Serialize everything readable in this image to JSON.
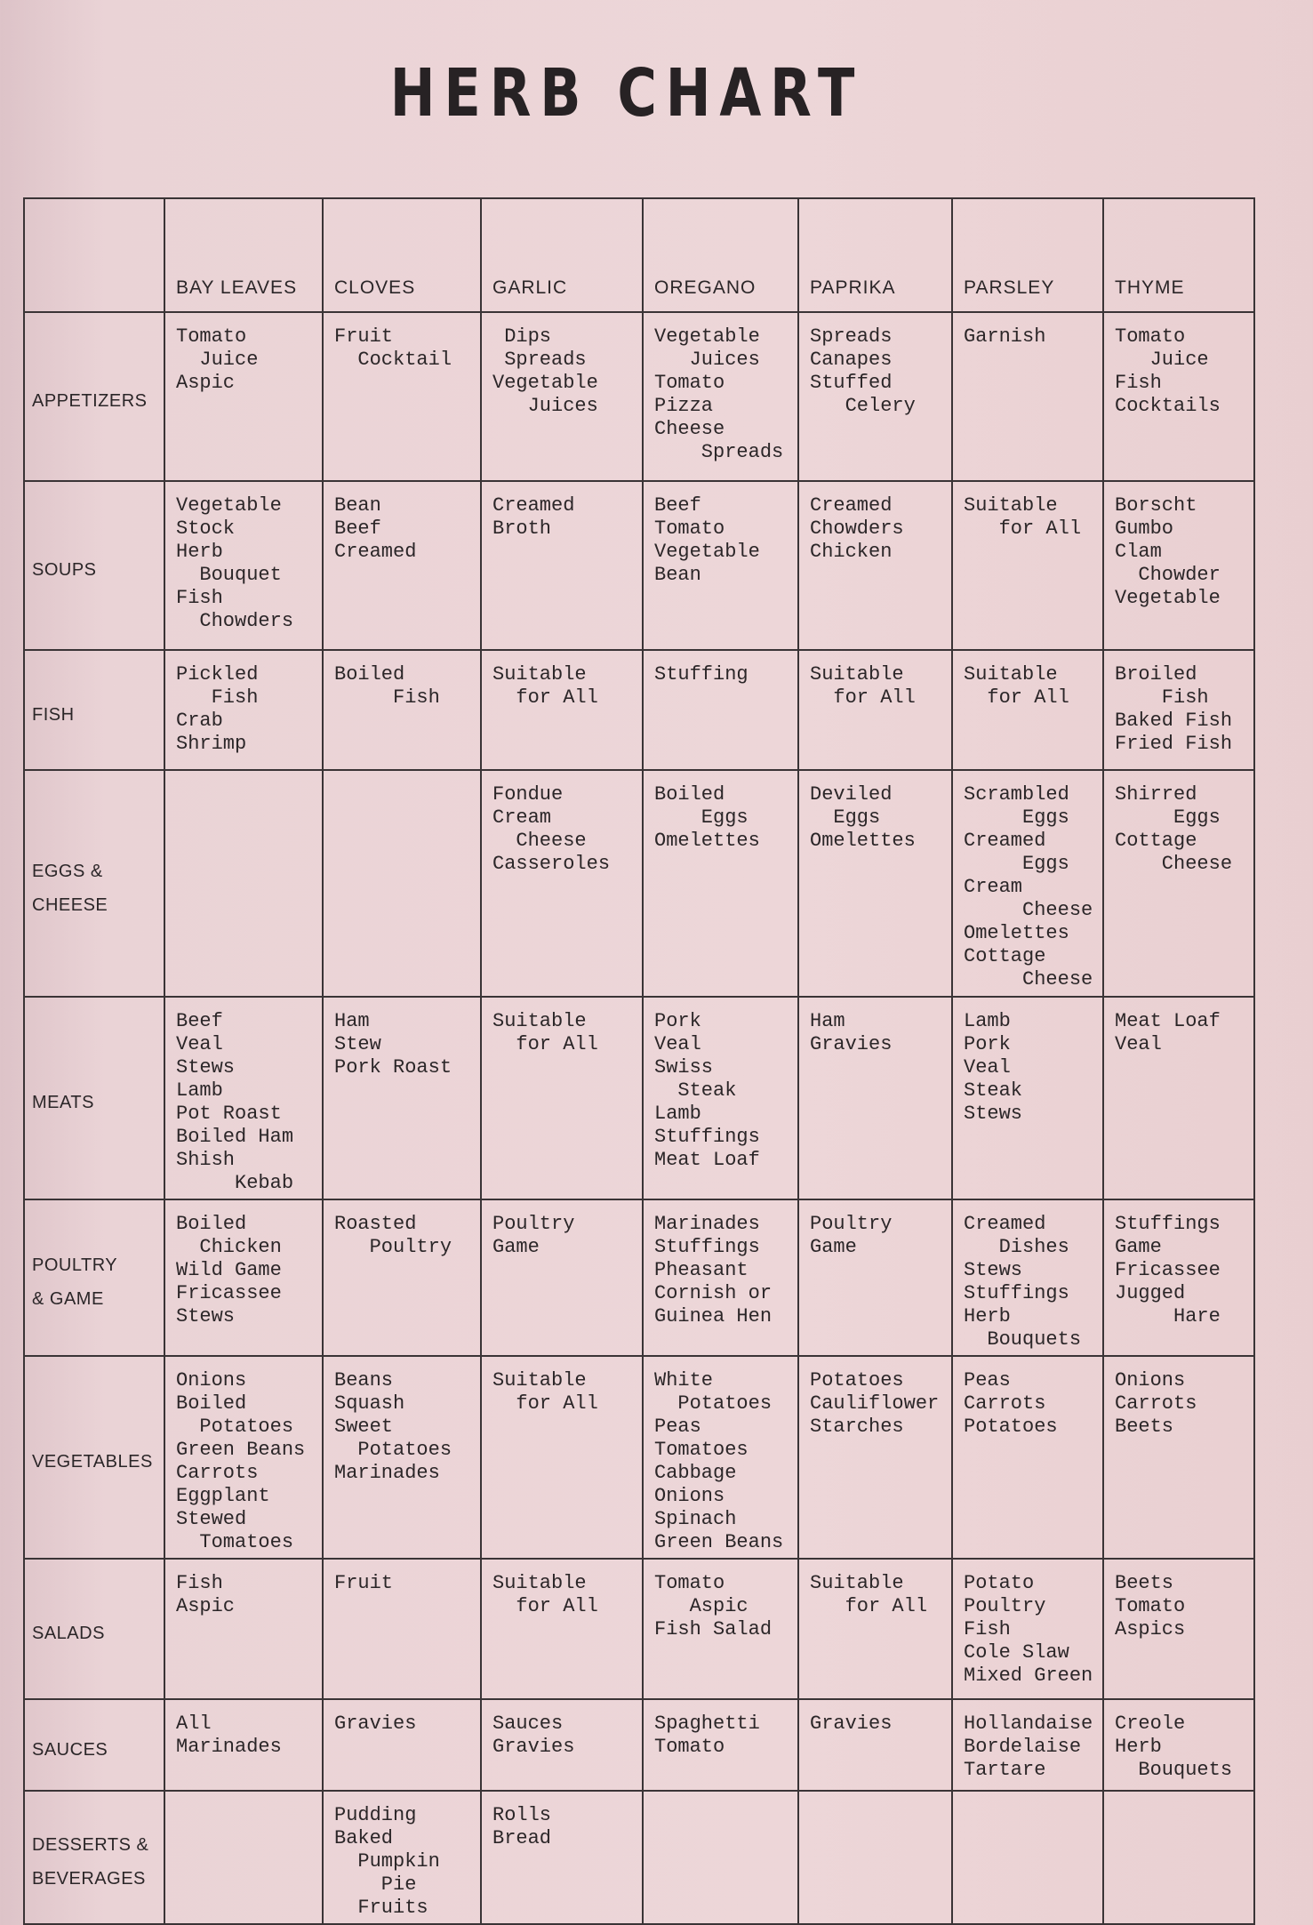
{
  "title": "HERB CHART",
  "columns": [
    "BAY LEAVES",
    "CLOVES",
    "GARLIC",
    "OREGANO",
    "PAPRIKA",
    "PARSLEY",
    "THYME"
  ],
  "rows": [
    {
      "label": [
        "APPETIZERS"
      ],
      "cells": [
        [
          "Tomato",
          "  Juice",
          "Aspic"
        ],
        [
          "Fruit",
          "  Cocktail"
        ],
        [
          " Dips",
          " Spreads",
          "Vegetable",
          "   Juices"
        ],
        [
          "Vegetable",
          "   Juices",
          "Tomato",
          "Pizza",
          "Cheese",
          "    Spreads"
        ],
        [
          "Spreads",
          "Canapes",
          "Stuffed",
          "   Celery"
        ],
        [
          "Garnish"
        ],
        [
          "Tomato",
          "   Juice",
          "Fish",
          "Cocktails"
        ]
      ]
    },
    {
      "label": [
        "SOUPS"
      ],
      "cells": [
        [
          "Vegetable",
          "Stock",
          "Herb",
          "  Bouquet",
          "Fish",
          "  Chowders"
        ],
        [
          "Bean",
          "Beef",
          "Creamed"
        ],
        [
          "Creamed",
          "Broth"
        ],
        [
          "Beef",
          "Tomato",
          "Vegetable",
          "Bean"
        ],
        [
          "Creamed",
          "Chowders",
          "Chicken"
        ],
        [
          "Suitable",
          "   for All"
        ],
        [
          "Borscht",
          "Gumbo",
          "Clam",
          "  Chowder",
          "Vegetable"
        ]
      ]
    },
    {
      "label": [
        "FISH"
      ],
      "cells": [
        [
          "Pickled",
          "   Fish",
          "Crab",
          "Shrimp"
        ],
        [
          "Boiled",
          "     Fish"
        ],
        [
          "Suitable",
          "  for All"
        ],
        [
          "Stuffing"
        ],
        [
          "Suitable",
          "  for All"
        ],
        [
          "Suitable",
          "  for All"
        ],
        [
          "Broiled",
          "    Fish",
          "Baked Fish",
          "Fried Fish"
        ]
      ]
    },
    {
      "label": [
        "EGGS &",
        "CHEESE"
      ],
      "cells": [
        [],
        [],
        [
          "Fondue",
          "Cream",
          "  Cheese",
          "Casseroles"
        ],
        [
          "Boiled",
          "    Eggs",
          "Omelettes"
        ],
        [
          "Deviled",
          "  Eggs",
          "Omelettes"
        ],
        [
          "Scrambled",
          "     Eggs",
          "Creamed",
          "     Eggs",
          "Cream",
          "     Cheese",
          "Omelettes",
          "Cottage",
          "     Cheese"
        ],
        [
          "Shirred",
          "     Eggs",
          "Cottage",
          "    Cheese"
        ]
      ]
    },
    {
      "label": [
        "MEATS"
      ],
      "cells": [
        [
          "Beef",
          "Veal",
          "Stews",
          "Lamb",
          "Pot Roast",
          "Boiled Ham",
          "Shish",
          "     Kebab"
        ],
        [
          "Ham",
          "Stew",
          "Pork Roast"
        ],
        [
          "Suitable",
          "  for All"
        ],
        [
          "Pork",
          "Veal",
          "Swiss",
          "  Steak",
          "Lamb",
          "Stuffings",
          "Meat Loaf"
        ],
        [
          "Ham",
          "Gravies"
        ],
        [
          "Lamb",
          "Pork",
          "Veal",
          "Steak",
          "Stews"
        ],
        [
          "Meat Loaf",
          "Veal"
        ]
      ]
    },
    {
      "label": [
        "POULTRY",
        "& GAME"
      ],
      "cells": [
        [
          "Boiled",
          "  Chicken",
          "Wild Game",
          "Fricassee",
          "Stews"
        ],
        [
          "Roasted",
          "   Poultry"
        ],
        [
          "Poultry",
          "Game"
        ],
        [
          "Marinades",
          "Stuffings",
          "Pheasant",
          "Cornish or",
          "Guinea Hen"
        ],
        [
          "Poultry",
          "Game"
        ],
        [
          "Creamed",
          "   Dishes",
          "Stews",
          "Stuffings",
          "Herb",
          "  Bouquets"
        ],
        [
          "Stuffings",
          "Game",
          "Fricassee",
          "Jugged",
          "     Hare"
        ]
      ]
    },
    {
      "label": [
        "VEGETABLES"
      ],
      "cells": [
        [
          "Onions",
          "Boiled",
          "  Potatoes",
          "Green Beans",
          "Carrots",
          "Eggplant",
          "Stewed",
          "  Tomatoes"
        ],
        [
          "Beans",
          "Squash",
          "Sweet",
          "  Potatoes",
          "Marinades"
        ],
        [
          "Suitable",
          "  for All"
        ],
        [
          "White",
          "  Potatoes",
          "Peas",
          "Tomatoes",
          "Cabbage",
          "Onions",
          "Spinach",
          "Green Beans"
        ],
        [
          "Potatoes",
          "Cauliflower",
          "Starches"
        ],
        [
          "Peas",
          "Carrots",
          "Potatoes"
        ],
        [
          "Onions",
          "Carrots",
          "Beets"
        ]
      ]
    },
    {
      "label": [
        "SALADS"
      ],
      "cells": [
        [
          "Fish",
          "Aspic"
        ],
        [
          "Fruit"
        ],
        [
          "Suitable",
          "  for All"
        ],
        [
          "Tomato",
          "   Aspic",
          "Fish Salad"
        ],
        [
          "Suitable",
          "   for All"
        ],
        [
          "Potato",
          "Poultry",
          "Fish",
          "Cole Slaw",
          "Mixed Green"
        ],
        [
          "Beets",
          "Tomato",
          "Aspics"
        ]
      ]
    },
    {
      "label": [
        "SAUCES"
      ],
      "cells": [
        [
          "All",
          "Marinades"
        ],
        [
          "Gravies"
        ],
        [
          "Sauces",
          "Gravies"
        ],
        [
          "Spaghetti",
          "Tomato"
        ],
        [
          "Gravies"
        ],
        [
          "Hollandaise",
          "Bordelaise",
          "Tartare"
        ],
        [
          "Creole",
          "Herb",
          "  Bouquets"
        ]
      ]
    },
    {
      "label": [
        "DESSERTS &",
        "BEVERAGES"
      ],
      "cells": [
        [],
        [
          "Pudding",
          "Baked",
          "  Pumpkin",
          "    Pie",
          "  Fruits"
        ],
        [
          "Rolls",
          "Bread"
        ],
        [],
        [],
        [],
        []
      ]
    }
  ],
  "colors": {
    "paper": "#edd6d8",
    "ink": "#2b2628",
    "rules": "#3a3436"
  }
}
